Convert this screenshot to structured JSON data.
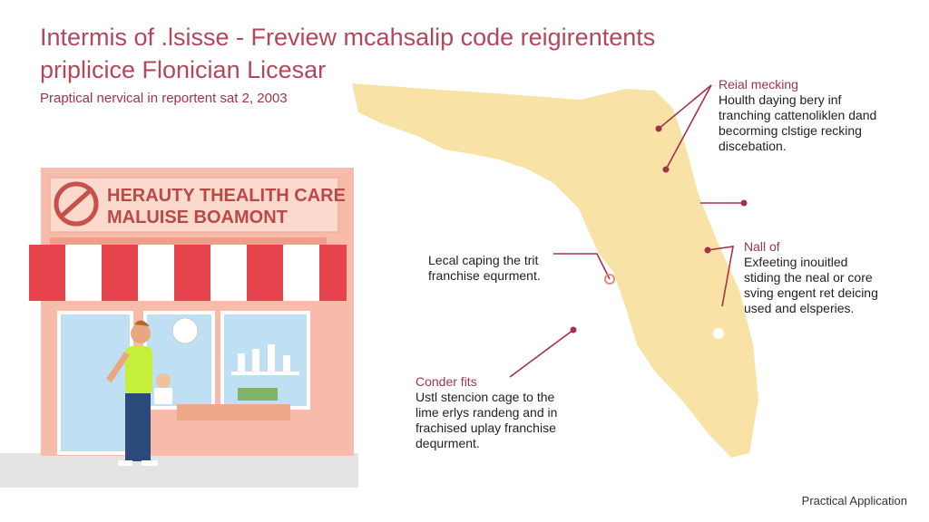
{
  "header": {
    "title_lines": [
      "Intermis of .lsisse - Freview mcahsalip code reigirentents",
      "priplicice Flonician Licesar"
    ],
    "subtitle": "Praptical nervical in reportent sat 2, 2003"
  },
  "storefront": {
    "sign_lines": [
      "HERAUTY THEALITH CARE",
      "MALUISE BOAMONT"
    ]
  },
  "callouts": [
    {
      "heading": "Reial mecking",
      "lines": [
        "Houlth daying bery inf",
        "tranching cattenoliklen dand",
        "becorming clstige recking",
        "discebation."
      ]
    },
    {
      "heading": "Nall of",
      "lines": [
        "Exfeeting inouitled",
        "stiding the neal or core",
        "sving engent ret deicing",
        "used and elsperies."
      ]
    },
    {
      "lines": [
        "Lecal caping the trit",
        "franchise equrment."
      ]
    },
    {
      "heading": "Conder fits",
      "lines": [
        "Ustl stencion cage to the",
        "lime erlys randeng and in",
        "frachised uplay franchise",
        "dequrment."
      ]
    }
  ],
  "footer": "Practical Application"
}
